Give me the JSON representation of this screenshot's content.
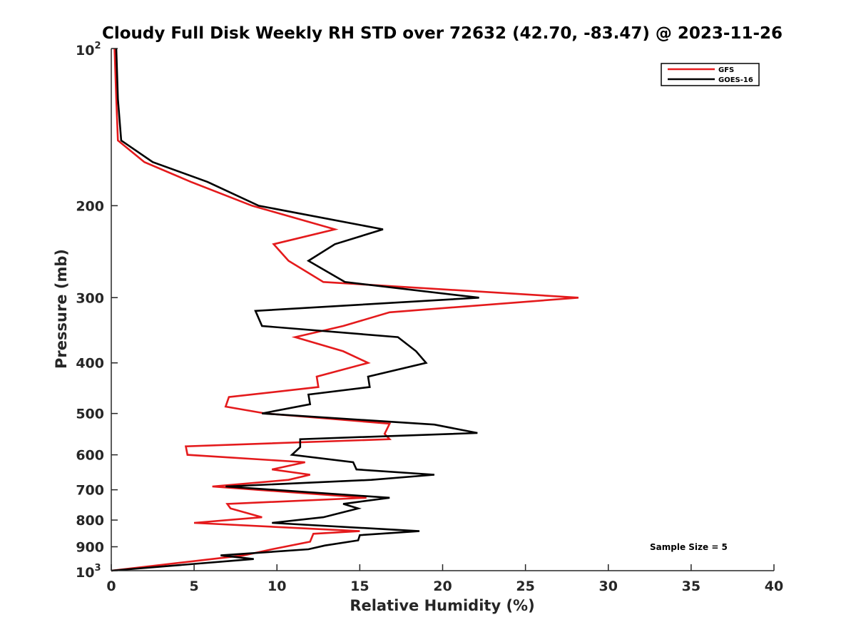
{
  "chart_data": {
    "type": "line",
    "title": "Cloudy Full Disk Weekly RH STD over 72632 (42.70, -83.47) @ 2023-11-26",
    "xlabel": "Relative Humidity (%)",
    "ylabel": "Pressure (mb)",
    "xlim": [
      0,
      40
    ],
    "ylim": [
      100,
      1000
    ],
    "y_scale": "log",
    "y_reversed": true,
    "xticks": [
      0,
      5,
      10,
      15,
      20,
      25,
      30,
      35,
      40
    ],
    "yticks": [
      {
        "value": 100,
        "base": "10",
        "exp": "2"
      },
      {
        "value": 200,
        "label": "200"
      },
      {
        "value": 300,
        "label": "300"
      },
      {
        "value": 400,
        "label": "400"
      },
      {
        "value": 500,
        "label": "500"
      },
      {
        "value": 600,
        "label": "600"
      },
      {
        "value": 700,
        "label": "700"
      },
      {
        "value": 800,
        "label": "800"
      },
      {
        "value": 900,
        "label": "900"
      },
      {
        "value": 1000,
        "base": "10",
        "exp": "3"
      }
    ],
    "grid": false,
    "legend_position": "top-right",
    "annotation": "Sample Size = 5",
    "series": [
      {
        "name": "GFS",
        "color": "#e41a1c",
        "points": [
          [
            0.2,
            100
          ],
          [
            0.3,
            125
          ],
          [
            0.4,
            150
          ],
          [
            2.0,
            165
          ],
          [
            4.8,
            180
          ],
          [
            8.5,
            200
          ],
          [
            13.5,
            222
          ],
          [
            9.8,
            237
          ],
          [
            10.7,
            255
          ],
          [
            12.8,
            280
          ],
          [
            28.2,
            300
          ],
          [
            16.8,
            320
          ],
          [
            14.0,
            340
          ],
          [
            11.1,
            357
          ],
          [
            14.0,
            380
          ],
          [
            15.5,
            400
          ],
          [
            12.4,
            425
          ],
          [
            12.5,
            445
          ],
          [
            7.1,
            465
          ],
          [
            6.9,
            485
          ],
          [
            9.3,
            500
          ],
          [
            16.8,
            523
          ],
          [
            16.5,
            547
          ],
          [
            16.8,
            560
          ],
          [
            4.5,
            578
          ],
          [
            4.6,
            600
          ],
          [
            11.7,
            620
          ],
          [
            9.7,
            640
          ],
          [
            12.0,
            655
          ],
          [
            10.7,
            670
          ],
          [
            6.1,
            690
          ],
          [
            15.4,
            725
          ],
          [
            7.0,
            745
          ],
          [
            7.2,
            760
          ],
          [
            9.1,
            790
          ],
          [
            5.0,
            810
          ],
          [
            15.0,
            840
          ],
          [
            12.2,
            850
          ],
          [
            12.0,
            880
          ],
          [
            9.7,
            910
          ],
          [
            8.0,
            935
          ],
          [
            0.0,
            1000
          ]
        ]
      },
      {
        "name": "GOES-16",
        "color": "#000000",
        "points": [
          [
            0.3,
            100
          ],
          [
            0.4,
            125
          ],
          [
            0.6,
            150
          ],
          [
            2.5,
            165
          ],
          [
            5.8,
            180
          ],
          [
            8.9,
            200
          ],
          [
            16.4,
            222
          ],
          [
            13.5,
            237
          ],
          [
            11.9,
            255
          ],
          [
            14.1,
            280
          ],
          [
            22.2,
            300
          ],
          [
            8.7,
            318
          ],
          [
            9.1,
            340
          ],
          [
            17.3,
            357
          ],
          [
            18.4,
            380
          ],
          [
            19.0,
            400
          ],
          [
            15.5,
            425
          ],
          [
            15.6,
            445
          ],
          [
            11.9,
            460
          ],
          [
            12.0,
            480
          ],
          [
            9.1,
            500
          ],
          [
            19.5,
            525
          ],
          [
            22.1,
            545
          ],
          [
            11.4,
            560
          ],
          [
            11.4,
            580
          ],
          [
            10.9,
            600
          ],
          [
            14.6,
            620
          ],
          [
            14.8,
            640
          ],
          [
            19.5,
            655
          ],
          [
            15.7,
            670
          ],
          [
            6.9,
            690
          ],
          [
            16.8,
            725
          ],
          [
            14.0,
            745
          ],
          [
            14.9,
            760
          ],
          [
            12.8,
            790
          ],
          [
            9.7,
            810
          ],
          [
            18.6,
            840
          ],
          [
            15.0,
            855
          ],
          [
            14.9,
            875
          ],
          [
            12.9,
            895
          ],
          [
            11.9,
            910
          ],
          [
            6.6,
            935
          ],
          [
            8.6,
            950
          ],
          [
            0.0,
            1000
          ]
        ]
      }
    ]
  }
}
